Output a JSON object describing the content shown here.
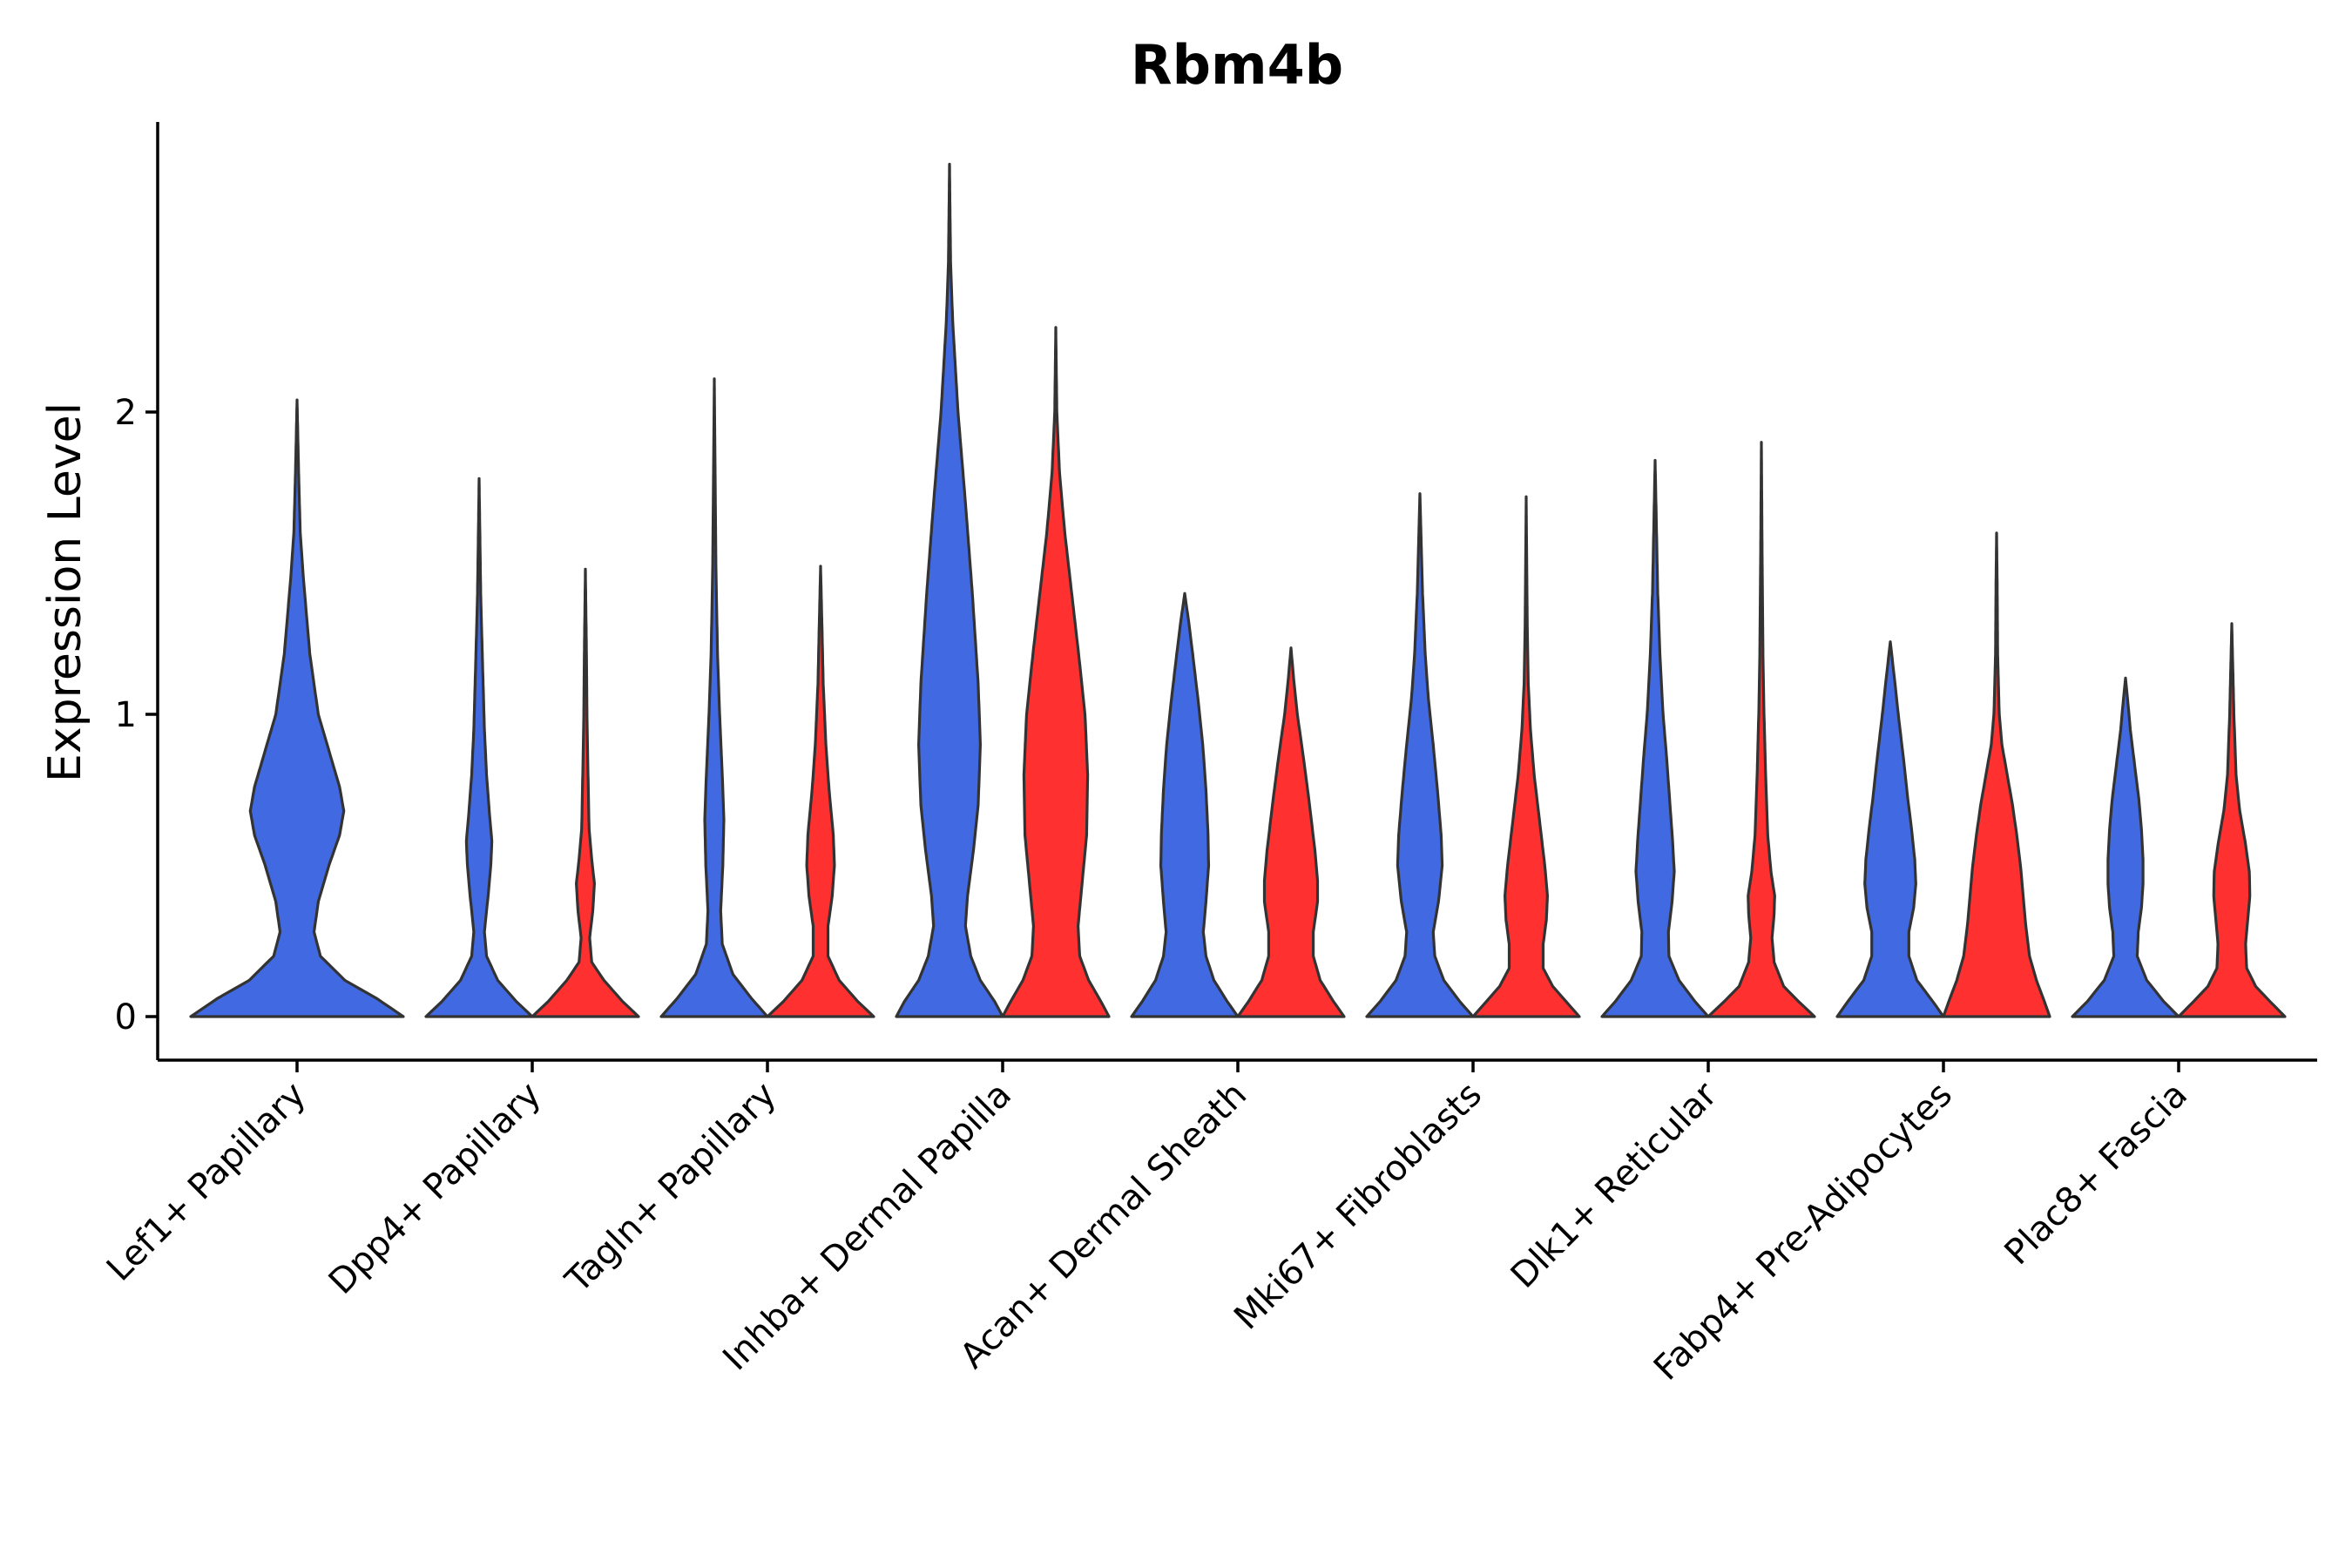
{
  "chart_data": {
    "type": "violin",
    "title": "Rbm4b",
    "ylabel": "Expression Level",
    "xlabel": "",
    "y_ticks": [
      0,
      1,
      2
    ],
    "ylim": [
      -0.14,
      2.98
    ],
    "grid": false,
    "legend": "none",
    "colors": {
      "blue": "#4169E1",
      "red": "#FF3030"
    },
    "categories": [
      "Lef1+ Papillary",
      "Dpp4+ Papillary",
      "Tagln+ Papillary",
      "Inhba+ Dermal Papilla",
      "Acan+ Dermal Sheath",
      "Mki67+ Fibroblasts",
      "Dlk1+ Reticular",
      "Fabp4+ Pre-Adipocytes",
      "Plac8+ Fascia"
    ],
    "violins": [
      {
        "category": 0,
        "side": "center",
        "color": "blue",
        "max": 2.04,
        "profile": [
          [
            0,
            1.0
          ],
          [
            0.06,
            0.75
          ],
          [
            0.12,
            0.45
          ],
          [
            0.2,
            0.22
          ],
          [
            0.28,
            0.16
          ],
          [
            0.38,
            0.2
          ],
          [
            0.5,
            0.3
          ],
          [
            0.6,
            0.4
          ],
          [
            0.68,
            0.44
          ],
          [
            0.76,
            0.4
          ],
          [
            0.88,
            0.3
          ],
          [
            1.0,
            0.2
          ],
          [
            1.2,
            0.12
          ],
          [
            1.45,
            0.06
          ],
          [
            1.6,
            0.03
          ],
          [
            1.8,
            0.015
          ],
          [
            2.04,
            0.0
          ]
        ]
      },
      {
        "category": 1,
        "side": "left",
        "color": "blue",
        "max": 1.78,
        "profile": [
          [
            0,
            1.0
          ],
          [
            0.05,
            0.7
          ],
          [
            0.12,
            0.35
          ],
          [
            0.2,
            0.14
          ],
          [
            0.28,
            0.1
          ],
          [
            0.4,
            0.17
          ],
          [
            0.5,
            0.22
          ],
          [
            0.58,
            0.24
          ],
          [
            0.66,
            0.2
          ],
          [
            0.8,
            0.14
          ],
          [
            0.95,
            0.1
          ],
          [
            1.2,
            0.06
          ],
          [
            1.4,
            0.03
          ],
          [
            1.78,
            0.0
          ]
        ]
      },
      {
        "category": 1,
        "side": "right",
        "color": "red",
        "max": 1.48,
        "profile": [
          [
            0,
            1.0
          ],
          [
            0.05,
            0.7
          ],
          [
            0.12,
            0.35
          ],
          [
            0.18,
            0.12
          ],
          [
            0.26,
            0.08
          ],
          [
            0.35,
            0.14
          ],
          [
            0.44,
            0.17
          ],
          [
            0.52,
            0.12
          ],
          [
            0.62,
            0.07
          ],
          [
            0.8,
            0.05
          ],
          [
            1.0,
            0.03
          ],
          [
            1.2,
            0.02
          ],
          [
            1.48,
            0.0
          ]
        ]
      },
      {
        "category": 2,
        "side": "left",
        "color": "blue",
        "max": 2.11,
        "profile": [
          [
            0,
            1.0
          ],
          [
            0.06,
            0.7
          ],
          [
            0.14,
            0.35
          ],
          [
            0.24,
            0.15
          ],
          [
            0.35,
            0.12
          ],
          [
            0.5,
            0.16
          ],
          [
            0.65,
            0.18
          ],
          [
            0.8,
            0.15
          ],
          [
            1.0,
            0.1
          ],
          [
            1.2,
            0.06
          ],
          [
            1.5,
            0.03
          ],
          [
            1.8,
            0.015
          ],
          [
            2.11,
            0.0
          ]
        ]
      },
      {
        "category": 2,
        "side": "right",
        "color": "red",
        "max": 1.49,
        "profile": [
          [
            0,
            1.0
          ],
          [
            0.05,
            0.7
          ],
          [
            0.12,
            0.35
          ],
          [
            0.2,
            0.14
          ],
          [
            0.3,
            0.14
          ],
          [
            0.4,
            0.22
          ],
          [
            0.5,
            0.26
          ],
          [
            0.6,
            0.24
          ],
          [
            0.75,
            0.16
          ],
          [
            0.9,
            0.1
          ],
          [
            1.1,
            0.05
          ],
          [
            1.3,
            0.025
          ],
          [
            1.49,
            0.0
          ]
        ]
      },
      {
        "category": 3,
        "side": "left",
        "color": "blue",
        "max": 2.82,
        "profile": [
          [
            0,
            1.0
          ],
          [
            0.05,
            0.85
          ],
          [
            0.12,
            0.58
          ],
          [
            0.2,
            0.4
          ],
          [
            0.3,
            0.3
          ],
          [
            0.4,
            0.34
          ],
          [
            0.55,
            0.45
          ],
          [
            0.7,
            0.54
          ],
          [
            0.9,
            0.58
          ],
          [
            1.1,
            0.54
          ],
          [
            1.4,
            0.43
          ],
          [
            1.7,
            0.3
          ],
          [
            2.0,
            0.16
          ],
          [
            2.3,
            0.06
          ],
          [
            2.5,
            0.02
          ],
          [
            2.82,
            0.0
          ]
        ]
      },
      {
        "category": 3,
        "side": "right",
        "color": "red",
        "max": 2.28,
        "profile": [
          [
            0,
            1.0
          ],
          [
            0.05,
            0.85
          ],
          [
            0.12,
            0.62
          ],
          [
            0.2,
            0.45
          ],
          [
            0.3,
            0.42
          ],
          [
            0.45,
            0.5
          ],
          [
            0.6,
            0.58
          ],
          [
            0.8,
            0.6
          ],
          [
            1.0,
            0.55
          ],
          [
            1.2,
            0.43
          ],
          [
            1.4,
            0.3
          ],
          [
            1.6,
            0.17
          ],
          [
            1.8,
            0.07
          ],
          [
            2.0,
            0.02
          ],
          [
            2.28,
            0.0
          ]
        ]
      },
      {
        "category": 4,
        "side": "left",
        "color": "blue",
        "max": 1.4,
        "profile": [
          [
            0,
            1.0
          ],
          [
            0.05,
            0.8
          ],
          [
            0.12,
            0.55
          ],
          [
            0.2,
            0.4
          ],
          [
            0.28,
            0.35
          ],
          [
            0.38,
            0.4
          ],
          [
            0.5,
            0.45
          ],
          [
            0.6,
            0.44
          ],
          [
            0.75,
            0.4
          ],
          [
            0.9,
            0.34
          ],
          [
            1.05,
            0.25
          ],
          [
            1.2,
            0.15
          ],
          [
            1.3,
            0.08
          ],
          [
            1.4,
            0.0
          ]
        ]
      },
      {
        "category": 4,
        "side": "right",
        "color": "red",
        "max": 1.22,
        "profile": [
          [
            0,
            1.0
          ],
          [
            0.05,
            0.8
          ],
          [
            0.12,
            0.55
          ],
          [
            0.2,
            0.42
          ],
          [
            0.28,
            0.42
          ],
          [
            0.38,
            0.5
          ],
          [
            0.45,
            0.5
          ],
          [
            0.55,
            0.45
          ],
          [
            0.7,
            0.35
          ],
          [
            0.85,
            0.24
          ],
          [
            1.0,
            0.12
          ],
          [
            1.1,
            0.06
          ],
          [
            1.22,
            0.0
          ]
        ]
      },
      {
        "category": 5,
        "side": "left",
        "color": "blue",
        "max": 1.73,
        "profile": [
          [
            0,
            1.0
          ],
          [
            0.05,
            0.75
          ],
          [
            0.12,
            0.45
          ],
          [
            0.2,
            0.28
          ],
          [
            0.28,
            0.25
          ],
          [
            0.38,
            0.35
          ],
          [
            0.5,
            0.42
          ],
          [
            0.6,
            0.4
          ],
          [
            0.75,
            0.33
          ],
          [
            0.9,
            0.25
          ],
          [
            1.05,
            0.16
          ],
          [
            1.2,
            0.1
          ],
          [
            1.4,
            0.05
          ],
          [
            1.73,
            0.0
          ]
        ]
      },
      {
        "category": 5,
        "side": "right",
        "color": "red",
        "max": 1.72,
        "profile": [
          [
            0,
            1.0
          ],
          [
            0.05,
            0.75
          ],
          [
            0.1,
            0.5
          ],
          [
            0.16,
            0.32
          ],
          [
            0.24,
            0.32
          ],
          [
            0.32,
            0.38
          ],
          [
            0.4,
            0.4
          ],
          [
            0.5,
            0.35
          ],
          [
            0.65,
            0.25
          ],
          [
            0.8,
            0.15
          ],
          [
            0.95,
            0.08
          ],
          [
            1.1,
            0.04
          ],
          [
            1.3,
            0.02
          ],
          [
            1.72,
            0.0
          ]
        ]
      },
      {
        "category": 6,
        "side": "left",
        "color": "blue",
        "max": 1.84,
        "profile": [
          [
            0,
            1.0
          ],
          [
            0.05,
            0.75
          ],
          [
            0.12,
            0.45
          ],
          [
            0.2,
            0.26
          ],
          [
            0.28,
            0.25
          ],
          [
            0.38,
            0.32
          ],
          [
            0.48,
            0.36
          ],
          [
            0.58,
            0.33
          ],
          [
            0.7,
            0.28
          ],
          [
            0.85,
            0.22
          ],
          [
            1.0,
            0.15
          ],
          [
            1.2,
            0.09
          ],
          [
            1.4,
            0.05
          ],
          [
            1.84,
            0.0
          ]
        ]
      },
      {
        "category": 6,
        "side": "right",
        "color": "red",
        "max": 1.9,
        "profile": [
          [
            0,
            1.0
          ],
          [
            0.05,
            0.7
          ],
          [
            0.1,
            0.42
          ],
          [
            0.18,
            0.24
          ],
          [
            0.26,
            0.2
          ],
          [
            0.34,
            0.24
          ],
          [
            0.4,
            0.25
          ],
          [
            0.48,
            0.18
          ],
          [
            0.6,
            0.12
          ],
          [
            0.8,
            0.08
          ],
          [
            1.0,
            0.05
          ],
          [
            1.2,
            0.03
          ],
          [
            1.5,
            0.015
          ],
          [
            1.9,
            0.0
          ]
        ]
      },
      {
        "category": 7,
        "side": "left",
        "color": "blue",
        "max": 1.24,
        "profile": [
          [
            0,
            1.0
          ],
          [
            0.05,
            0.8
          ],
          [
            0.12,
            0.5
          ],
          [
            0.2,
            0.35
          ],
          [
            0.28,
            0.35
          ],
          [
            0.36,
            0.44
          ],
          [
            0.44,
            0.48
          ],
          [
            0.52,
            0.46
          ],
          [
            0.62,
            0.4
          ],
          [
            0.72,
            0.33
          ],
          [
            0.85,
            0.25
          ],
          [
            1.0,
            0.15
          ],
          [
            1.1,
            0.09
          ],
          [
            1.24,
            0.0
          ]
        ]
      },
      {
        "category": 7,
        "side": "right",
        "color": "red",
        "max": 1.6,
        "profile": [
          [
            0,
            1.0
          ],
          [
            0.05,
            0.9
          ],
          [
            0.12,
            0.75
          ],
          [
            0.2,
            0.62
          ],
          [
            0.3,
            0.55
          ],
          [
            0.4,
            0.5
          ],
          [
            0.5,
            0.45
          ],
          [
            0.6,
            0.38
          ],
          [
            0.7,
            0.3
          ],
          [
            0.8,
            0.2
          ],
          [
            0.9,
            0.1
          ],
          [
            1.0,
            0.05
          ],
          [
            1.2,
            0.02
          ],
          [
            1.45,
            0.01
          ],
          [
            1.6,
            0.0
          ]
        ]
      },
      {
        "category": 8,
        "side": "left",
        "color": "blue",
        "max": 1.12,
        "profile": [
          [
            0,
            1.0
          ],
          [
            0.05,
            0.72
          ],
          [
            0.12,
            0.4
          ],
          [
            0.2,
            0.22
          ],
          [
            0.28,
            0.24
          ],
          [
            0.36,
            0.3
          ],
          [
            0.44,
            0.33
          ],
          [
            0.52,
            0.33
          ],
          [
            0.62,
            0.3
          ],
          [
            0.72,
            0.25
          ],
          [
            0.85,
            0.16
          ],
          [
            0.95,
            0.09
          ],
          [
            1.05,
            0.04
          ],
          [
            1.12,
            0.0
          ]
        ]
      },
      {
        "category": 8,
        "side": "right",
        "color": "red",
        "max": 1.3,
        "profile": [
          [
            0,
            1.0
          ],
          [
            0.05,
            0.72
          ],
          [
            0.1,
            0.45
          ],
          [
            0.16,
            0.28
          ],
          [
            0.24,
            0.26
          ],
          [
            0.32,
            0.3
          ],
          [
            0.4,
            0.34
          ],
          [
            0.48,
            0.33
          ],
          [
            0.58,
            0.25
          ],
          [
            0.68,
            0.15
          ],
          [
            0.8,
            0.08
          ],
          [
            1.0,
            0.04
          ],
          [
            1.3,
            0.0
          ]
        ]
      }
    ]
  }
}
